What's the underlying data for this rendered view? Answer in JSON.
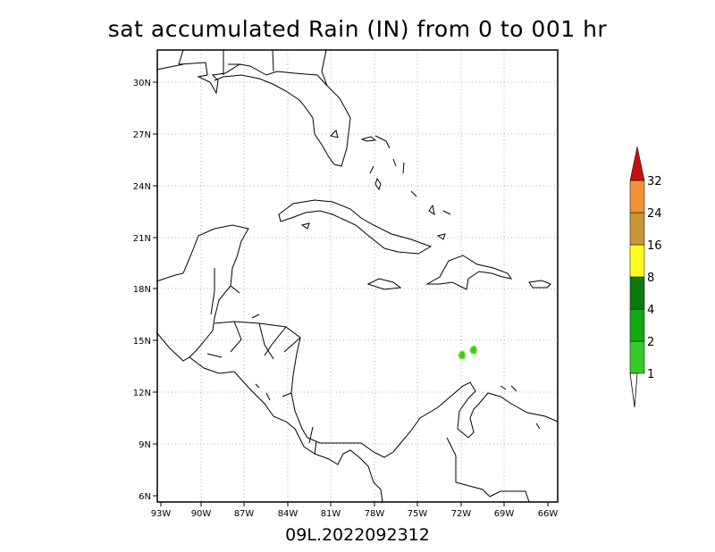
{
  "title": "sat accumulated Rain (IN) from 0 to 001 hr",
  "footer": "09L.2022092312",
  "map": {
    "lon_labels": [
      "93W",
      "90W",
      "87W",
      "84W",
      "81W",
      "78W",
      "75W",
      "72W",
      "69W",
      "66W"
    ],
    "lat_labels": [
      "30N",
      "27N",
      "24N",
      "21N",
      "18N",
      "15N",
      "12N",
      "9N",
      "6N"
    ],
    "extent": {
      "lon_min": -93.2,
      "lon_max": -65.2,
      "lat_min": 5.6,
      "lat_max": 31.8
    },
    "gridlines": "dotted",
    "rain_areas": [
      {
        "lon": -71.9,
        "lat": 14.1,
        "level": "1-2"
      },
      {
        "lon": -71.1,
        "lat": 14.4,
        "level": "1-2"
      }
    ]
  },
  "colorbar": {
    "labels": [
      "1",
      "2",
      "4",
      "8",
      "16",
      "24",
      "32"
    ],
    "colors": [
      "#9ef22e",
      "#38c92e",
      "#12a912",
      "#0c7a0c",
      "#fdfd22",
      "#c9943a",
      "#ee9338",
      "#c80e0e"
    ]
  }
}
